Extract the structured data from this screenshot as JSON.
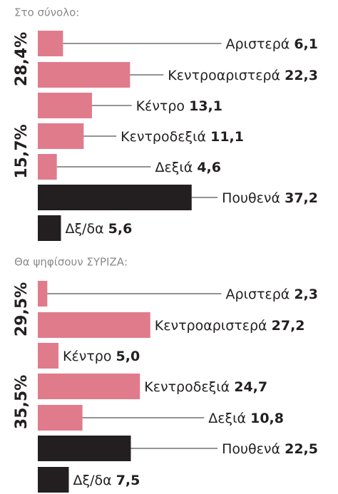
{
  "chart_data": [
    {
      "type": "bar",
      "title": "Στο σύνολο:",
      "categories": [
        "Αριστερά",
        "Κεντροαριστερά",
        "Κέντρο",
        "Κεντροδεξιά",
        "Δεξιά",
        "Πουθενά",
        "Δξ/δα"
      ],
      "values": [
        6.1,
        22.3,
        13.1,
        11.1,
        4.6,
        37.2,
        5.6
      ],
      "value_labels": [
        "6,1",
        "22,3",
        "13,1",
        "11,1",
        "4,6",
        "37,2",
        "5,6"
      ],
      "colors": [
        "#e07b8c",
        "#e07b8c",
        "#e07b8c",
        "#e07b8c",
        "#e07b8c",
        "#231f20",
        "#231f20"
      ],
      "annotations": [
        "28,4%",
        "15,7%"
      ]
    },
    {
      "type": "bar",
      "title": "Θα ψηφίσουν ΣΥΡΙΖΑ:",
      "categories": [
        "Αριστερά",
        "Κεντροαριστερά",
        "Κέντρο",
        "Κεντροδεξιά",
        "Δεξιά",
        "Πουθενά",
        "Δξ/δα"
      ],
      "values": [
        2.3,
        27.2,
        5.0,
        24.7,
        10.8,
        22.5,
        7.5
      ],
      "value_labels": [
        "2,3",
        "27,2",
        "5,0",
        "24,7",
        "10,8",
        "22,5",
        "7,5"
      ],
      "colors": [
        "#e07b8c",
        "#e07b8c",
        "#e07b8c",
        "#e07b8c",
        "#e07b8c",
        "#231f20",
        "#231f20"
      ],
      "annotations": [
        "29,5%",
        "35,5%"
      ]
    }
  ]
}
